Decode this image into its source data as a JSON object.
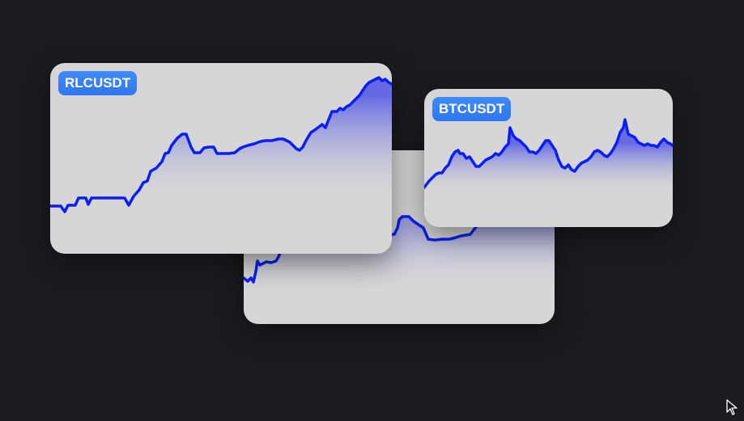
{
  "widgets": {
    "rlc": {
      "ticker": "RLCUSDT"
    },
    "btc": {
      "ticker": "BTCUSDT"
    },
    "middle": {
      "ticker": ""
    }
  },
  "colors": {
    "background": "#1b1c20",
    "card": "#d6d6d6",
    "line": "#0b1ff0",
    "badge": "#3a84f5",
    "badge_text": "#ffffff"
  },
  "icons": {
    "cursor": "pointer-arrow-icon"
  }
}
